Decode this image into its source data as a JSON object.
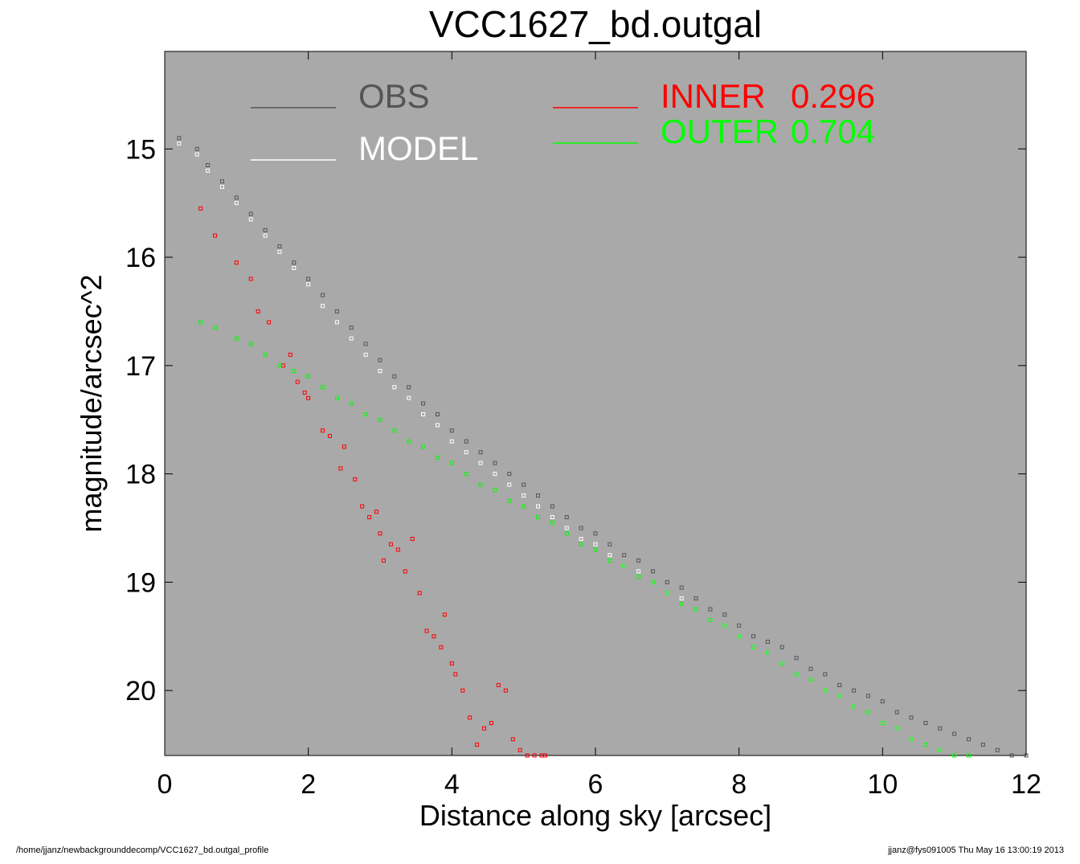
{
  "chart_data": {
    "type": "scatter",
    "title": "VCC1627_bd.outgal",
    "xlabel": "Distance along sky [arcsec]",
    "ylabel": "magnitude/arcsec^2",
    "xlim": [
      0,
      12
    ],
    "ylim": [
      20.6,
      14.1
    ],
    "y_inverted": true,
    "x_ticks": [
      "0",
      "2",
      "4",
      "6",
      "8",
      "10",
      "12"
    ],
    "y_ticks": [
      "15",
      "16",
      "17",
      "18",
      "19",
      "20"
    ],
    "grid": false,
    "background_color": "#a9a9a9",
    "legend": {
      "placement": "top",
      "entries": [
        {
          "label": "OBS",
          "color": "#555555"
        },
        {
          "label": "MODEL",
          "color": "#ffffff"
        },
        {
          "label": "INNER",
          "value": "0.296",
          "color": "#ff0000"
        },
        {
          "label": "OUTER",
          "value": "0.704",
          "color": "#00ff00"
        }
      ]
    },
    "series": [
      {
        "name": "OBS",
        "color": "#555555",
        "marker": "square",
        "x": [
          0.2,
          0.45,
          0.6,
          0.8,
          1.0,
          1.2,
          1.4,
          1.6,
          1.8,
          2.0,
          2.2,
          2.4,
          2.6,
          2.8,
          3.0,
          3.2,
          3.4,
          3.6,
          3.8,
          4.0,
          4.2,
          4.4,
          4.6,
          4.8,
          5.0,
          5.2,
          5.4,
          5.6,
          5.8,
          6.0,
          6.2,
          6.4,
          6.6,
          6.8,
          7.0,
          7.2,
          7.4,
          7.6,
          7.8,
          8.0,
          8.2,
          8.4,
          8.6,
          8.8,
          9.0,
          9.2,
          9.4,
          9.6,
          9.8,
          10.0,
          10.2,
          10.4,
          10.6,
          10.8,
          11.0,
          11.2,
          11.4,
          11.6,
          11.8,
          12.0
        ],
        "y": [
          14.9,
          15.0,
          15.15,
          15.3,
          15.45,
          15.6,
          15.75,
          15.9,
          16.05,
          16.2,
          16.35,
          16.5,
          16.65,
          16.8,
          16.95,
          17.1,
          17.2,
          17.35,
          17.45,
          17.6,
          17.7,
          17.8,
          17.9,
          18.0,
          18.1,
          18.2,
          18.3,
          18.4,
          18.5,
          18.55,
          18.65,
          18.75,
          18.8,
          18.9,
          19.0,
          19.05,
          19.15,
          19.25,
          19.3,
          19.4,
          19.5,
          19.55,
          19.6,
          19.7,
          19.8,
          19.85,
          19.95,
          20.0,
          20.05,
          20.1,
          20.2,
          20.25,
          20.3,
          20.35,
          20.4,
          20.45,
          20.5,
          20.55,
          20.6,
          20.6
        ]
      },
      {
        "name": "MODEL",
        "color": "#ffffff",
        "marker": "square",
        "x": [
          0.2,
          0.45,
          0.6,
          0.8,
          1.0,
          1.2,
          1.4,
          1.6,
          1.8,
          2.0,
          2.2,
          2.4,
          2.6,
          2.8,
          3.0,
          3.2,
          3.4,
          3.6,
          3.8,
          4.0,
          4.2,
          4.4,
          4.6,
          4.8,
          5.0,
          5.2,
          5.4,
          5.6,
          5.8,
          6.0,
          6.2,
          6.4,
          6.6,
          6.8,
          7.0,
          7.2,
          7.4,
          7.6,
          7.8,
          8.0,
          8.2,
          8.4,
          8.6,
          8.8,
          9.0,
          9.2,
          9.4,
          9.6,
          9.8,
          10.0,
          10.2,
          10.4,
          10.6,
          10.8,
          11.0,
          11.2
        ],
        "y": [
          14.95,
          15.05,
          15.2,
          15.35,
          15.5,
          15.65,
          15.8,
          15.95,
          16.1,
          16.25,
          16.45,
          16.6,
          16.75,
          16.9,
          17.05,
          17.2,
          17.3,
          17.45,
          17.55,
          17.7,
          17.8,
          17.9,
          18.0,
          18.1,
          18.2,
          18.3,
          18.4,
          18.5,
          18.6,
          18.65,
          18.75,
          18.85,
          18.9,
          19.0,
          19.1,
          19.15,
          19.25,
          19.35,
          19.4,
          19.5,
          19.6,
          19.65,
          19.75,
          19.85,
          19.9,
          20.0,
          20.05,
          20.15,
          20.2,
          20.3,
          20.35,
          20.45,
          20.5,
          20.55,
          20.6,
          20.6
        ]
      },
      {
        "name": "INNER",
        "color": "#ff0000",
        "marker": "square",
        "x": [
          0.5,
          0.7,
          1.0,
          1.2,
          1.3,
          1.45,
          1.65,
          1.75,
          1.85,
          1.95,
          2.0,
          2.2,
          2.3,
          2.45,
          2.5,
          2.65,
          2.75,
          2.85,
          2.95,
          3.0,
          3.05,
          3.15,
          3.25,
          3.35,
          3.45,
          3.55,
          3.65,
          3.75,
          3.85,
          3.9,
          4.0,
          4.05,
          4.15,
          4.25,
          4.35,
          4.45,
          4.55,
          4.65,
          4.75,
          4.85,
          4.95,
          5.05,
          5.15,
          5.25,
          5.3
        ],
        "y": [
          15.55,
          15.8,
          16.05,
          16.2,
          16.5,
          16.6,
          17.0,
          16.9,
          17.15,
          17.25,
          17.3,
          17.6,
          17.65,
          17.95,
          17.75,
          18.05,
          18.3,
          18.4,
          18.35,
          18.55,
          18.8,
          18.65,
          18.7,
          18.9,
          18.6,
          19.1,
          19.45,
          19.5,
          19.6,
          19.3,
          19.75,
          19.85,
          20.0,
          20.25,
          20.5,
          20.35,
          20.3,
          19.95,
          20.0,
          20.45,
          20.55,
          20.6,
          20.6,
          20.6,
          20.6
        ]
      },
      {
        "name": "OUTER",
        "color": "#00ff00",
        "marker": "square",
        "x": [
          0.5,
          0.7,
          1.0,
          1.2,
          1.4,
          1.6,
          1.8,
          2.0,
          2.2,
          2.4,
          2.6,
          2.8,
          3.0,
          3.2,
          3.4,
          3.6,
          3.8,
          4.0,
          4.2,
          4.4,
          4.6,
          4.8,
          5.0,
          5.2,
          5.4,
          5.6,
          5.8,
          6.0,
          6.2,
          6.4,
          6.6,
          6.8,
          7.0,
          7.2,
          7.4,
          7.6,
          7.8,
          8.0,
          8.2,
          8.4,
          8.6,
          8.8,
          9.0,
          9.2,
          9.4,
          9.6,
          9.8,
          10.0,
          10.2,
          10.4,
          10.6,
          10.8,
          11.0,
          11.2
        ],
        "y": [
          16.6,
          16.65,
          16.75,
          16.8,
          16.9,
          17.0,
          17.05,
          17.1,
          17.2,
          17.3,
          17.35,
          17.45,
          17.5,
          17.6,
          17.7,
          17.75,
          17.85,
          17.9,
          18.0,
          18.1,
          18.15,
          18.25,
          18.3,
          18.4,
          18.45,
          18.55,
          18.65,
          18.7,
          18.8,
          18.85,
          18.95,
          19.0,
          19.1,
          19.2,
          19.25,
          19.35,
          19.4,
          19.5,
          19.6,
          19.65,
          19.75,
          19.85,
          19.9,
          20.0,
          20.05,
          20.15,
          20.2,
          20.3,
          20.35,
          20.45,
          20.5,
          20.55,
          20.6,
          20.6
        ]
      }
    ]
  },
  "footer": {
    "left": "/home/jjanz/newbackgrounddecomp/VCC1627_bd.outgal_profile",
    "right": "jjanz@fys091005  Thu May 16 13:00:19 2013"
  }
}
